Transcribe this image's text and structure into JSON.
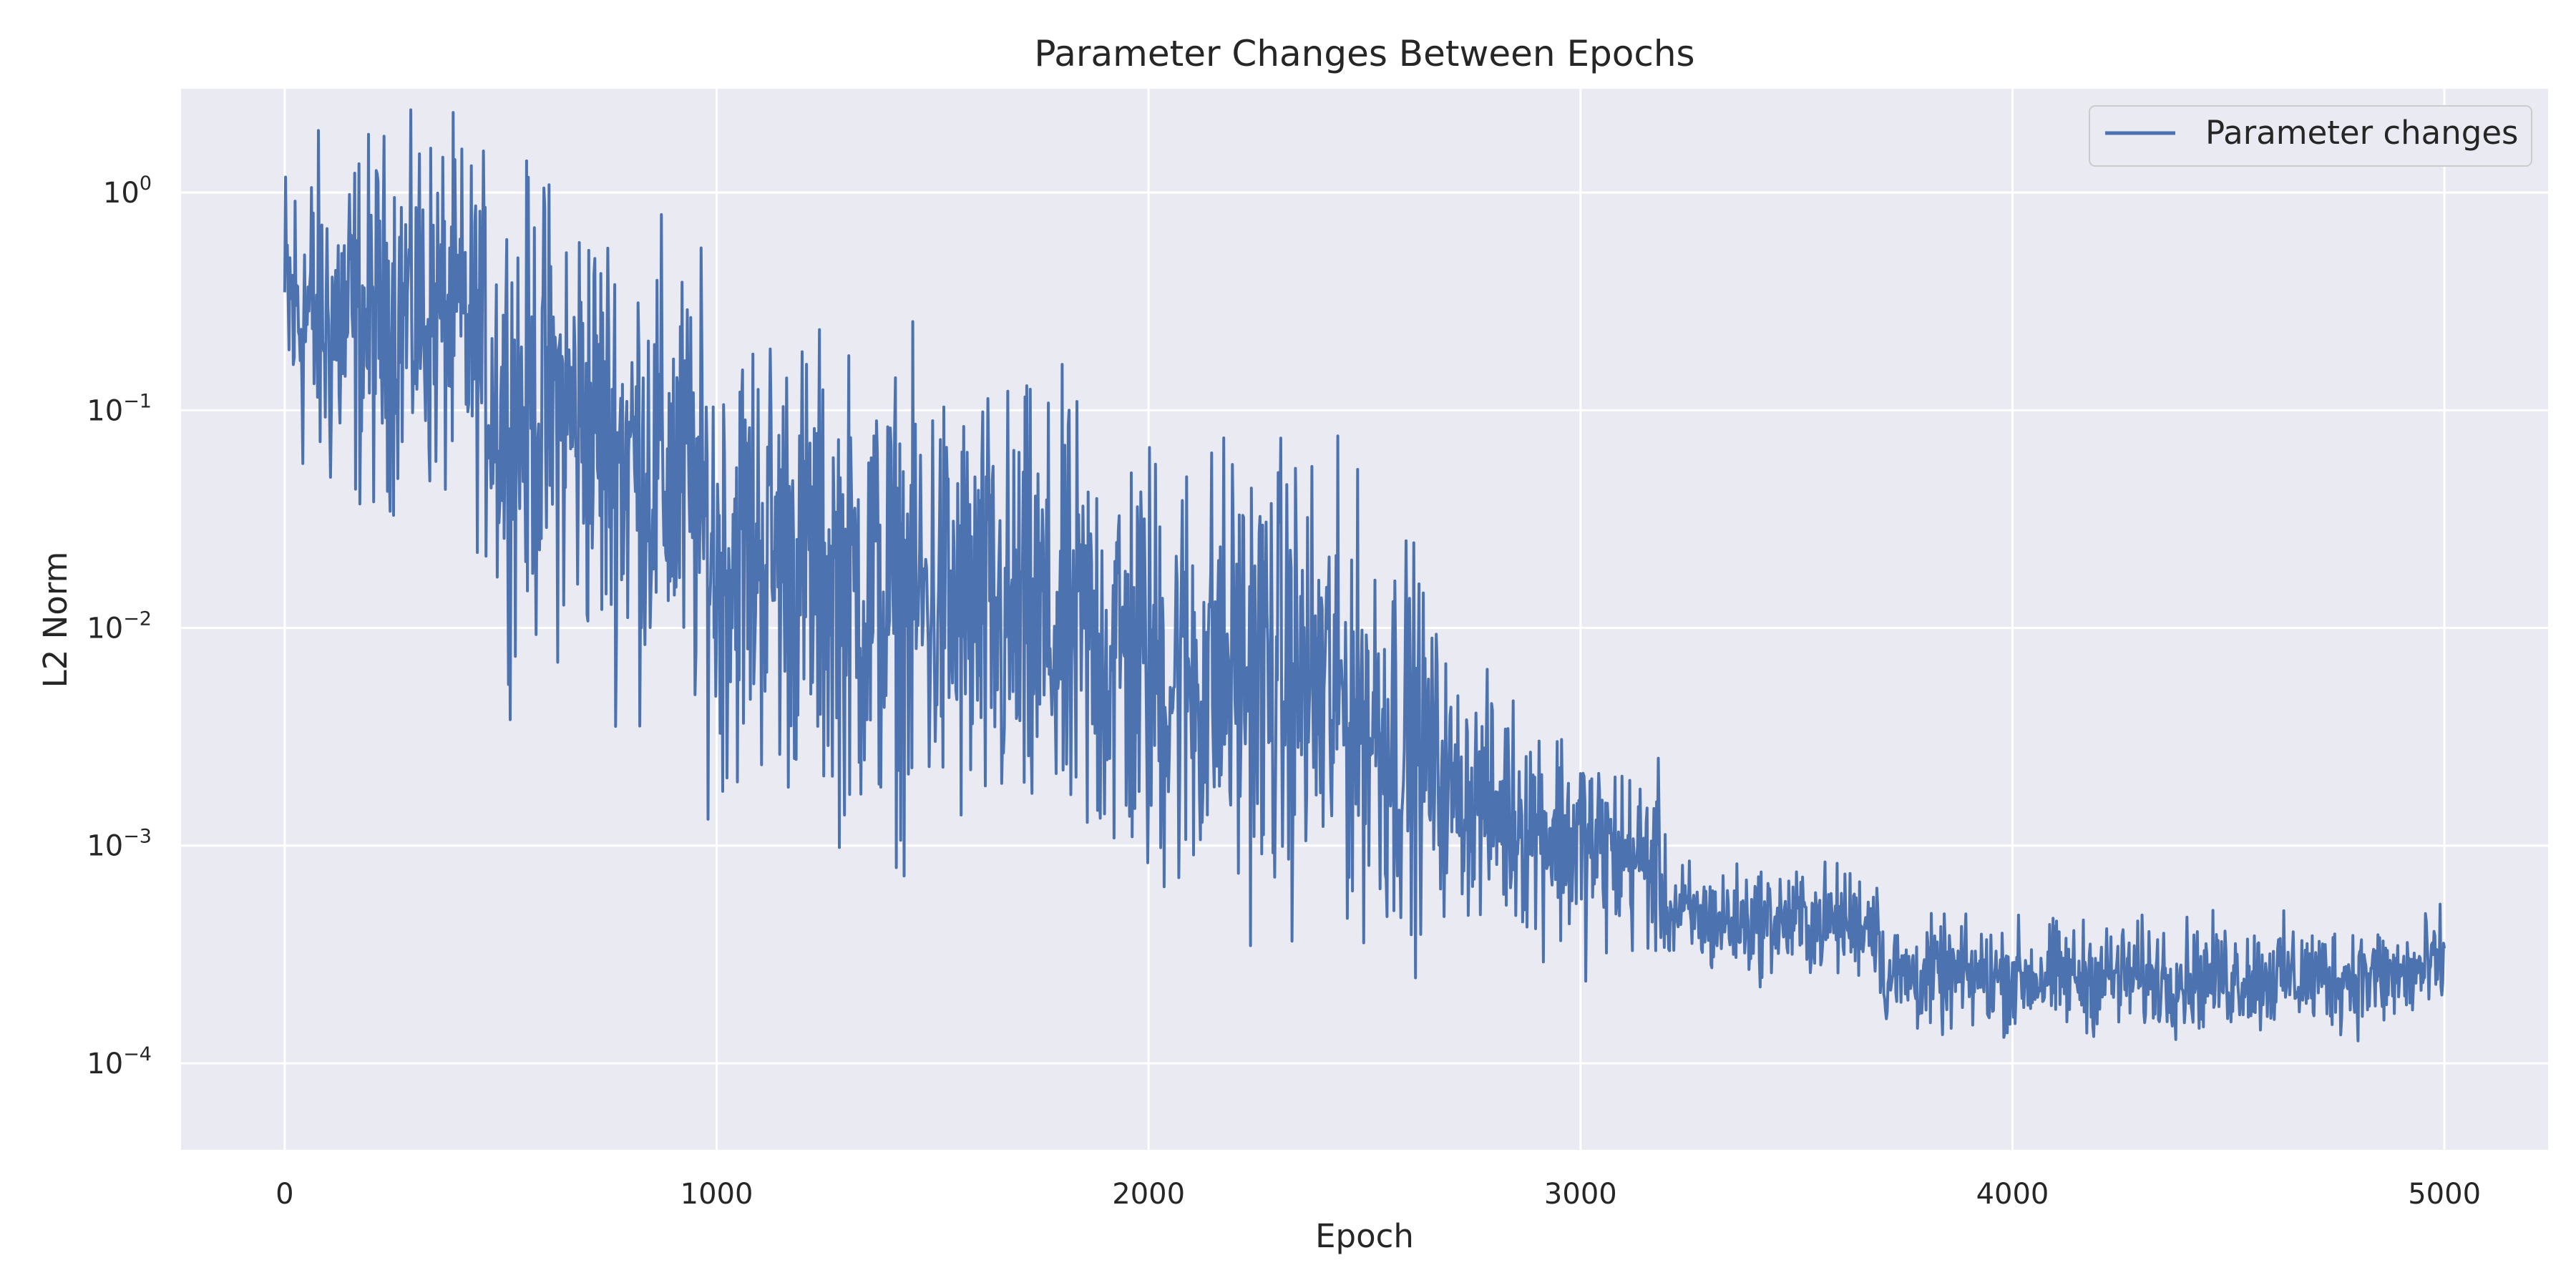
{
  "chart_data": {
    "type": "line",
    "title": "Parameter Changes Between Epochs",
    "xlabel": "Epoch",
    "ylabel": "L2 Norm",
    "xlim": [
      -240,
      5240
    ],
    "ylim": [
      4e-05,
      3
    ],
    "yscale": "log",
    "grid": true,
    "legend": {
      "placement": "top-right",
      "entries": [
        "Parameter changes"
      ]
    },
    "xticks": [
      {
        "value": 0,
        "label": "0"
      },
      {
        "value": 1000,
        "label": "1000"
      },
      {
        "value": 2000,
        "label": "2000"
      },
      {
        "value": 3000,
        "label": "3000"
      },
      {
        "value": 4000,
        "label": "4000"
      },
      {
        "value": 5000,
        "label": "5000"
      }
    ],
    "yticks": [
      {
        "value": 1,
        "base": "10",
        "exp": "0"
      },
      {
        "value": 0.1,
        "base": "10",
        "exp": "−1"
      },
      {
        "value": 0.01,
        "base": "10",
        "exp": "−2"
      },
      {
        "value": 0.001,
        "base": "10",
        "exp": "−3"
      },
      {
        "value": 0.0001,
        "base": "10",
        "exp": "−4"
      }
    ],
    "colors": {
      "series": "#4c72b0",
      "background": "#eaeaf2",
      "grid": "#ffffff"
    },
    "series": [
      {
        "name": "Parameter changes",
        "x": [
          0,
          100,
          200,
          300,
          400,
          450,
          500,
          600,
          700,
          800,
          900,
          950,
          1000,
          1100,
          1200,
          1300,
          1400,
          1500,
          1600,
          1700,
          1800,
          1900,
          2000,
          2100,
          2200,
          2300,
          2400,
          2500,
          2600,
          2650,
          2700,
          2800,
          2900,
          3000,
          3100,
          3180,
          3200,
          3300,
          3400,
          3500,
          3600,
          3690,
          3700,
          3800,
          3900,
          4000,
          4100,
          4200,
          4300,
          4400,
          4500,
          4600,
          4700,
          4800,
          4900,
          5000
        ],
        "y": [
          0.3,
          0.25,
          0.25,
          0.3,
          0.25,
          0.2,
          0.1,
          0.1,
          0.09,
          0.06,
          0.05,
          0.04,
          0.02,
          0.025,
          0.02,
          0.015,
          0.013,
          0.013,
          0.011,
          0.01,
          0.009,
          0.008,
          0.0065,
          0.006,
          0.0065,
          0.006,
          0.005,
          0.004,
          0.003,
          0.0025,
          0.0018,
          0.0015,
          0.0013,
          0.001,
          0.0009,
          0.0008,
          0.0005,
          0.00045,
          0.00045,
          0.00045,
          0.00045,
          0.00045,
          0.00025,
          0.00025,
          0.00025,
          0.00025,
          0.00025,
          0.00025,
          0.00025,
          0.00025,
          0.00025,
          0.00025,
          0.00025,
          0.00025,
          0.00025,
          0.00028
        ],
        "spread": [
          0.35,
          0.4,
          0.4,
          0.4,
          0.4,
          0.4,
          0.5,
          0.5,
          0.5,
          0.5,
          0.5,
          0.5,
          0.5,
          0.5,
          0.5,
          0.5,
          0.5,
          0.5,
          0.5,
          0.5,
          0.5,
          0.5,
          0.5,
          0.5,
          0.5,
          0.5,
          0.5,
          0.45,
          0.45,
          0.35,
          0.25,
          0.25,
          0.25,
          0.25,
          0.2,
          0.2,
          0.12,
          0.12,
          0.12,
          0.12,
          0.12,
          0.12,
          0.12,
          0.12,
          0.12,
          0.12,
          0.12,
          0.12,
          0.12,
          0.12,
          0.12,
          0.12,
          0.12,
          0.12,
          0.12,
          0.12
        ]
      }
    ]
  }
}
